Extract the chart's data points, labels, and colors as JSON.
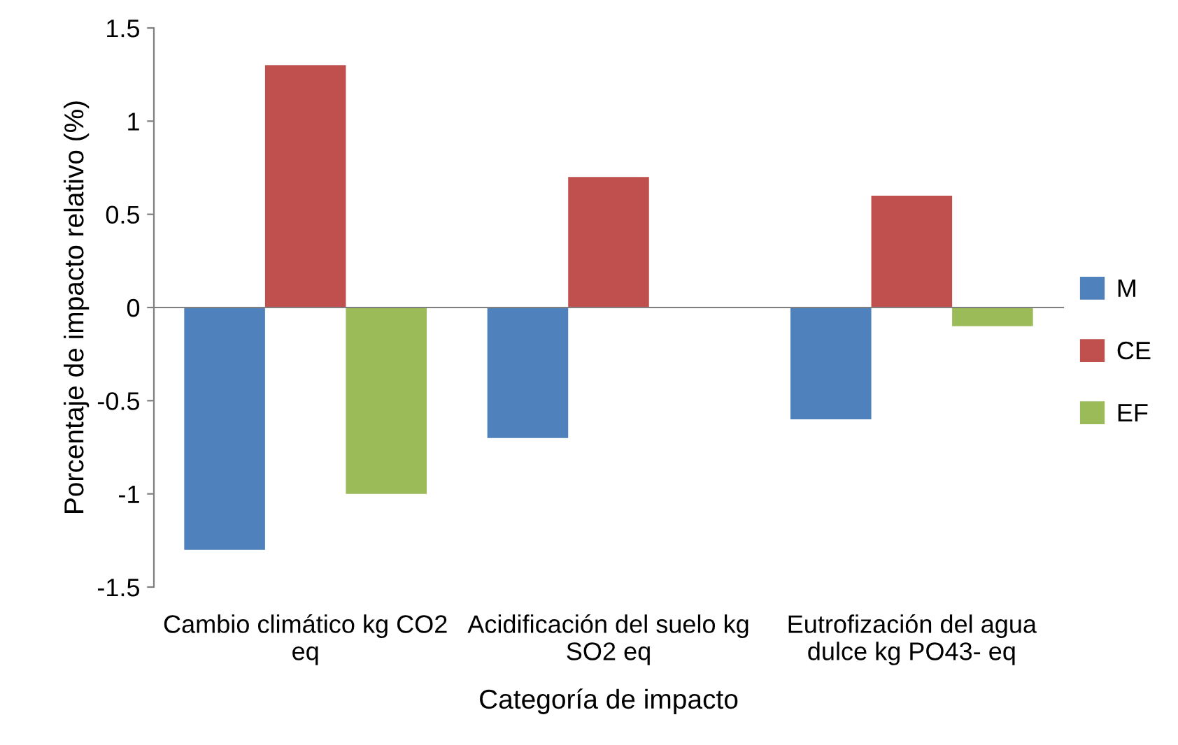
{
  "chart_data": {
    "type": "bar",
    "xlabel": "Categoría de impacto",
    "ylabel": "Porcentaje de impacto relativo (%)",
    "categories": [
      "Cambio climático kg CO2 eq",
      "Acidificación del suelo kg SO2 eq",
      "Eutrofización del agua dulce kg PO43- eq"
    ],
    "series": [
      {
        "name": "M",
        "color": "#4f81bd",
        "values": [
          -1.3,
          -0.7,
          -0.6
        ]
      },
      {
        "name": "CE",
        "color": "#c0504d",
        "values": [
          1.3,
          0.7,
          0.6
        ]
      },
      {
        "name": "EF",
        "color": "#9bbb59",
        "values": [
          -1.0,
          0,
          -0.1
        ]
      }
    ],
    "ylim": [
      -1.5,
      1.5
    ],
    "yticks": [
      -1.5,
      -1,
      -0.5,
      0,
      0.5,
      1,
      1.5
    ],
    "legend": "right"
  }
}
